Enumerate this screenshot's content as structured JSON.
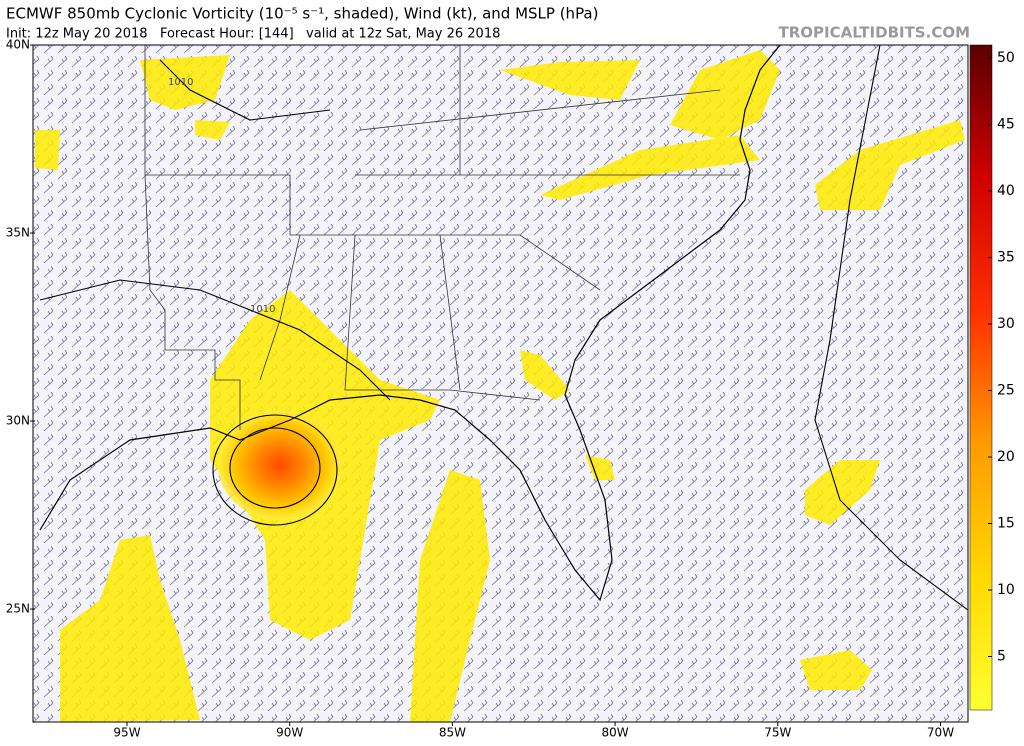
{
  "header": {
    "title": "ECMWF 850mb Cyclonic Vorticity (10⁻⁵ s⁻¹, shaded), Wind (kt), and MSLP (hPa)",
    "subtitle": "Init: 12z May 20 2018   Forecast Hour: [144]   valid at 12z Sat, May 26 2018",
    "watermark": "TROPICALTIDBITS.COM"
  },
  "map": {
    "lat_labels": [
      "40N",
      "35N",
      "30N",
      "25N"
    ],
    "lon_labels": [
      "95W",
      "90W",
      "85W",
      "80W",
      "75W",
      "70W"
    ],
    "isobar_labels": [
      "1010",
      "1010"
    ]
  },
  "colorbar": {
    "ticks": [
      5,
      10,
      15,
      20,
      25,
      30,
      35,
      40,
      45,
      50
    ]
  }
}
